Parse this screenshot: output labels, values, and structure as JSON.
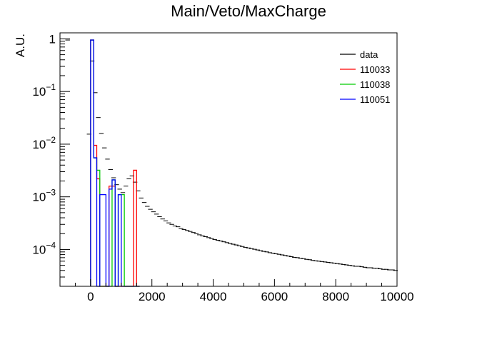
{
  "chart_data": {
    "type": "histogram",
    "title": "Main/Veto/MaxCharge",
    "ylabel": "A.U.",
    "xlabel": "",
    "xlim": [
      -1000,
      10000
    ],
    "ylim": [
      2e-05,
      1.3
    ],
    "yscale": "log",
    "grid": false,
    "legend_position": "top-right",
    "x_ticks": [
      0,
      2000,
      4000,
      6000,
      8000,
      10000
    ],
    "x_tick_labels": [
      "0",
      "2000",
      "4000",
      "6000",
      "8000",
      "10000"
    ],
    "y_ticks": [
      {
        "value": 1,
        "base": "1",
        "exp": ""
      },
      {
        "value": 0.1,
        "base": "10",
        "exp": "−1"
      },
      {
        "value": 0.01,
        "base": "10",
        "exp": "−2"
      },
      {
        "value": 0.001,
        "base": "10",
        "exp": "−3"
      },
      {
        "value": 0.0001,
        "base": "10",
        "exp": "−4"
      }
    ],
    "series": [
      {
        "name": "data",
        "color": "#000000",
        "style": "points",
        "x": [
          -750,
          -50,
          50,
          150,
          250,
          350,
          450,
          550,
          650,
          750,
          850,
          950,
          1050,
          1150,
          1250,
          1350,
          1450,
          1550,
          1650,
          1750,
          1850,
          1950,
          2050,
          2150,
          2250,
          2350,
          2450,
          2550,
          2650,
          2750,
          2850,
          2950,
          3050,
          3150,
          3250,
          3350,
          3450,
          3550,
          3650,
          3750,
          3850,
          3950,
          4050,
          4150,
          4250,
          4350,
          4450,
          4550,
          4650,
          4750,
          4850,
          4950,
          5050,
          5150,
          5250,
          5350,
          5450,
          5550,
          5650,
          5750,
          5850,
          5950,
          6050,
          6150,
          6250,
          6350,
          6450,
          6550,
          6650,
          6750,
          6850,
          6950,
          7050,
          7150,
          7250,
          7350,
          7450,
          7550,
          7650,
          7750,
          7850,
          7950,
          8050,
          8150,
          8250,
          8350,
          8450,
          8550,
          8650,
          8750,
          8850,
          8950,
          9050,
          9150,
          9250,
          9350,
          9450,
          9550,
          9650,
          9750,
          9850,
          9950
        ],
        "y": [
          0.95,
          0.0155,
          0.38,
          0.095,
          0.032,
          0.016,
          0.0085,
          0.0052,
          0.0033,
          0.0023,
          0.0017,
          0.0014,
          0.0012,
          0.0016,
          0.0022,
          0.0025,
          0.0019,
          0.0013,
          0.00095,
          0.00078,
          0.00066,
          0.00058,
          0.00052,
          0.00047,
          0.00042,
          0.00038,
          0.00035,
          0.00032,
          0.0003,
          0.00028,
          0.00027,
          0.00025,
          0.00024,
          0.00023,
          0.00022,
          0.00021,
          0.0002,
          0.00019,
          0.000182,
          0.000175,
          0.000168,
          0.000161,
          0.000155,
          0.00015,
          0.000145,
          0.00014,
          0.000135,
          0.00013,
          0.000126,
          0.000122,
          0.000118,
          0.000114,
          0.00011,
          0.000107,
          0.000104,
          0.000101,
          9.8e-05,
          9.5e-05,
          9.2e-05,
          9e-05,
          8.7e-05,
          8.5e-05,
          8.3e-05,
          8.1e-05,
          7.9e-05,
          7.7e-05,
          7.5e-05,
          7.3e-05,
          7.1e-05,
          7e-05,
          6.8e-05,
          6.7e-05,
          6.5e-05,
          6.4e-05,
          6.2e-05,
          6.1e-05,
          6e-05,
          5.9e-05,
          5.8e-05,
          5.7e-05,
          5.6e-05,
          5.5e-05,
          5.4e-05,
          5.3e-05,
          5.2e-05,
          5.1e-05,
          5e-05,
          4.9e-05,
          4.8e-05,
          4.8e-05,
          4.7e-05,
          4.6e-05,
          4.5e-05,
          4.5e-05,
          4.4e-05,
          4.4e-05,
          4.3e-05,
          4.2e-05,
          4.2e-05,
          4.1e-05,
          4.1e-05,
          4e-05
        ]
      },
      {
        "name": "110033",
        "color": "#ff0000",
        "style": "step",
        "x": [
          0,
          100,
          200,
          300,
          400,
          500,
          600,
          700,
          800,
          900,
          1000,
          1100,
          1200,
          1300,
          1400,
          1500
        ],
        "y": [
          0.95,
          0.0095,
          0.0022,
          0,
          0,
          0,
          0.0016,
          0.0016,
          0,
          0,
          0,
          0,
          0,
          0,
          0.0032,
          0
        ]
      },
      {
        "name": "110038",
        "color": "#00cc00",
        "style": "step",
        "x": [
          0,
          100,
          200,
          300,
          400,
          500,
          600,
          700,
          800,
          900,
          1000,
          1100,
          1200,
          1300,
          1400,
          1500
        ],
        "y": [
          0.95,
          0.0055,
          0.0032,
          0,
          0,
          0,
          0,
          0.0021,
          0,
          0.0011,
          0.0011,
          0,
          0,
          0,
          0,
          0
        ]
      },
      {
        "name": "110051",
        "color": "#0000ff",
        "style": "step",
        "x": [
          0,
          100,
          200,
          300,
          400,
          500,
          600,
          700,
          800,
          900,
          1000,
          1100,
          1200,
          1300,
          1400,
          1500
        ],
        "y": [
          0.95,
          0.0055,
          0,
          0.0011,
          0.0011,
          0,
          0.0014,
          0.0021,
          0,
          0.0011,
          0,
          0,
          0,
          0,
          0,
          0
        ]
      }
    ]
  }
}
